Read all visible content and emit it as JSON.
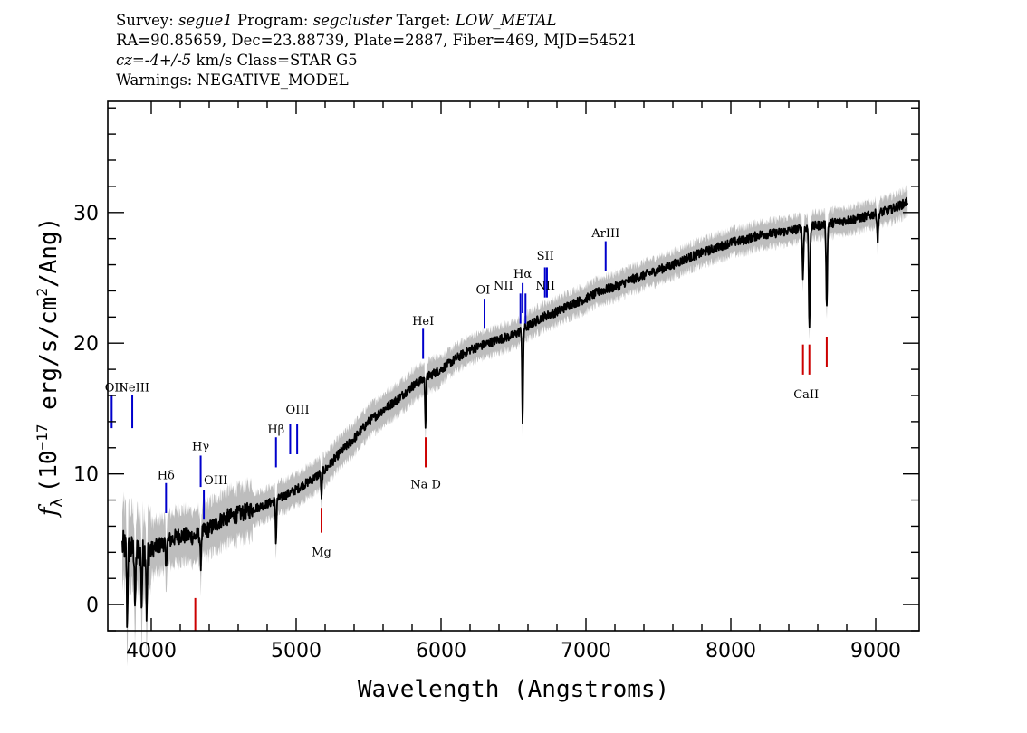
{
  "header": {
    "line1": {
      "survey_label": "Survey:",
      "survey": "segue1",
      "program_label": "Program:",
      "program": "segcluster",
      "target_label": "Target:",
      "target": "LOW_METAL"
    },
    "line2": "RA=90.85659, Dec=23.88739, Plate=2887, Fiber=469, MJD=54521",
    "line3": {
      "cz": "cz=-4+/-5",
      "rest": "km/s Class=STAR G5"
    },
    "line4": "Warnings: NEGATIVE_MODEL"
  },
  "chart_data": {
    "type": "line",
    "xlabel": "Wavelength (Angstroms)",
    "ylabel": "f_λ (10^-17 erg/s/cm^2/Ang)",
    "ylabel_parts": {
      "f": "f",
      "sub": "λ",
      "pre": "(10",
      "exp1": "−17",
      "mid": " erg/s/cm",
      "exp2": "2",
      "post": "/Ang)"
    },
    "xlim": [
      3700,
      9300
    ],
    "ylim": [
      -2,
      38.5
    ],
    "xticks": [
      4000,
      5000,
      6000,
      7000,
      8000,
      9000
    ],
    "yticks": [
      0,
      10,
      20,
      30
    ],
    "xtick_labels": [
      "4000",
      "5000",
      "6000",
      "7000",
      "8000",
      "9000"
    ],
    "ytick_labels": [
      "0",
      "10",
      "20",
      "30"
    ],
    "colors": {
      "flux": "#000000",
      "error_band": "#bdbdbd",
      "emission": "#0000cc",
      "absorption": "#cc0000"
    },
    "flux_continuum": [
      [
        3800,
        4.5
      ],
      [
        3900,
        4.0
      ],
      [
        4000,
        4.2
      ],
      [
        4100,
        4.8
      ],
      [
        4200,
        5.3
      ],
      [
        4300,
        5.2
      ],
      [
        4400,
        5.8
      ],
      [
        4500,
        6.6
      ],
      [
        4600,
        6.9
      ],
      [
        4700,
        7.3
      ],
      [
        4800,
        7.7
      ],
      [
        4900,
        8.2
      ],
      [
        5000,
        8.8
      ],
      [
        5100,
        9.5
      ],
      [
        5200,
        10.3
      ],
      [
        5300,
        11.6
      ],
      [
        5400,
        12.7
      ],
      [
        5500,
        14.0
      ],
      [
        5600,
        14.9
      ],
      [
        5700,
        15.7
      ],
      [
        5800,
        16.7
      ],
      [
        5900,
        17.4
      ],
      [
        6000,
        18.0
      ],
      [
        6100,
        18.8
      ],
      [
        6200,
        19.5
      ],
      [
        6300,
        19.9
      ],
      [
        6400,
        20.3
      ],
      [
        6500,
        20.6
      ],
      [
        6600,
        21.3
      ],
      [
        6700,
        22.0
      ],
      [
        6800,
        22.4
      ],
      [
        6900,
        23.0
      ],
      [
        7000,
        23.4
      ],
      [
        7100,
        24.0
      ],
      [
        7200,
        24.3
      ],
      [
        7300,
        24.8
      ],
      [
        7400,
        25.2
      ],
      [
        7500,
        25.6
      ],
      [
        7600,
        26.0
      ],
      [
        7700,
        26.5
      ],
      [
        7800,
        26.9
      ],
      [
        7900,
        27.3
      ],
      [
        8000,
        27.7
      ],
      [
        8100,
        27.9
      ],
      [
        8200,
        28.3
      ],
      [
        8300,
        28.4
      ],
      [
        8400,
        28.6
      ],
      [
        8500,
        28.8
      ],
      [
        8600,
        29.0
      ],
      [
        8700,
        29.2
      ],
      [
        8800,
        29.4
      ],
      [
        8900,
        29.6
      ],
      [
        9000,
        29.9
      ],
      [
        9100,
        30.2
      ],
      [
        9200,
        30.7
      ],
      [
        9220,
        30.9
      ]
    ],
    "absorption_dips": [
      {
        "x": 3834,
        "y": -1.5
      },
      {
        "x": 3889,
        "y": -0.5
      },
      {
        "x": 3934,
        "y": 0.0
      },
      {
        "x": 3969,
        "y": -1.0
      },
      {
        "x": 4102,
        "y": 2.5
      },
      {
        "x": 4341,
        "y": 3.0
      },
      {
        "x": 4861,
        "y": 4.8
      },
      {
        "x": 5175,
        "y": 8.0
      },
      {
        "x": 5893,
        "y": 13.8
      },
      {
        "x": 6563,
        "y": 13.7
      },
      {
        "x": 8498,
        "y": 25.2
      },
      {
        "x": 8542,
        "y": 21.0
      },
      {
        "x": 8662,
        "y": 23.0
      },
      {
        "x": 9014,
        "y": 27.8
      }
    ],
    "emission_lines": [
      {
        "name": "OII",
        "x": 3727,
        "y0": 13.5,
        "y1": 16.0
      },
      {
        "name": "NeIII",
        "x": 3869,
        "y0": 13.5,
        "y1": 16.0
      },
      {
        "name": "Hδ",
        "x": 4102,
        "y0": 7.0,
        "y1": 9.3
      },
      {
        "name": "Hγ",
        "x": 4341,
        "y0": 9.0,
        "y1": 11.4
      },
      {
        "name": "OIII",
        "x": 4363,
        "y0": 6.5,
        "y1": 8.8
      },
      {
        "name": "Hβ",
        "x": 4861,
        "y0": 10.5,
        "y1": 12.8
      },
      {
        "name": "OIII",
        "x": 4959,
        "y0": 11.5,
        "y1": 13.8
      },
      {
        "name": "OIII",
        "x": 5007,
        "y0": 11.5,
        "y1": 13.8
      },
      {
        "name": "HeI",
        "x": 5876,
        "y0": 18.8,
        "y1": 21.1
      },
      {
        "name": "OI",
        "x": 6300,
        "y0": 21.1,
        "y1": 23.4
      },
      {
        "name": "NII",
        "x": 6548,
        "y0": 21.5,
        "y1": 23.8
      },
      {
        "name": "Hα",
        "x": 6563,
        "y0": 22.3,
        "y1": 24.6
      },
      {
        "name": "NII",
        "x": 6583,
        "y0": 21.5,
        "y1": 23.8
      },
      {
        "name": "SII",
        "x": 6717,
        "y0": 23.5,
        "y1": 25.8
      },
      {
        "name": "SII",
        "x": 6731,
        "y0": 23.5,
        "y1": 25.8
      },
      {
        "name": "ArIII",
        "x": 7136,
        "y0": 25.5,
        "y1": 27.8
      }
    ],
    "absorption_lines": [
      {
        "name": "",
        "x": 4304,
        "y0": -2.0,
        "y1": 0.5
      },
      {
        "name": "Mg",
        "x": 5175,
        "y0": 5.5,
        "y1": 7.4
      },
      {
        "name": "Na D",
        "x": 5894,
        "y0": 10.5,
        "y1": 12.8
      },
      {
        "name": "CaII",
        "x": 8498,
        "y0": 17.6,
        "y1": 19.9
      },
      {
        "name": "CaII",
        "x": 8542,
        "y0": 17.6,
        "y1": 19.9
      },
      {
        "name": "CaII",
        "x": 8662,
        "y0": 18.2,
        "y1": 20.5
      }
    ],
    "label_positions": [
      {
        "text": "OII",
        "x": 3745,
        "y": 16.3
      },
      {
        "text": "NeIII",
        "x": 3880,
        "y": 16.3
      },
      {
        "text": "Hδ",
        "x": 4102,
        "y": 9.6
      },
      {
        "text": "Hγ",
        "x": 4341,
        "y": 11.8
      },
      {
        "text": "OIII",
        "x": 4445,
        "y": 9.2
      },
      {
        "text": "Hβ",
        "x": 4861,
        "y": 13.1
      },
      {
        "text": "OIII",
        "x": 5010,
        "y": 14.6
      },
      {
        "text": "HeI",
        "x": 5876,
        "y": 21.4
      },
      {
        "text": "OI",
        "x": 6290,
        "y": 23.8
      },
      {
        "text": "NII",
        "x": 6430,
        "y": 24.1
      },
      {
        "text": "Hα",
        "x": 6563,
        "y": 25.0
      },
      {
        "text": "NII",
        "x": 6720,
        "y": 24.1
      },
      {
        "text": "SII",
        "x": 6720,
        "y": 26.4
      },
      {
        "text": "ArIII",
        "x": 7136,
        "y": 28.1
      },
      {
        "text": "Mg",
        "x": 5175,
        "y": 3.7
      },
      {
        "text": "Na D",
        "x": 5894,
        "y": 8.9
      },
      {
        "text": "CaII",
        "x": 8520,
        "y": 15.8
      }
    ]
  }
}
